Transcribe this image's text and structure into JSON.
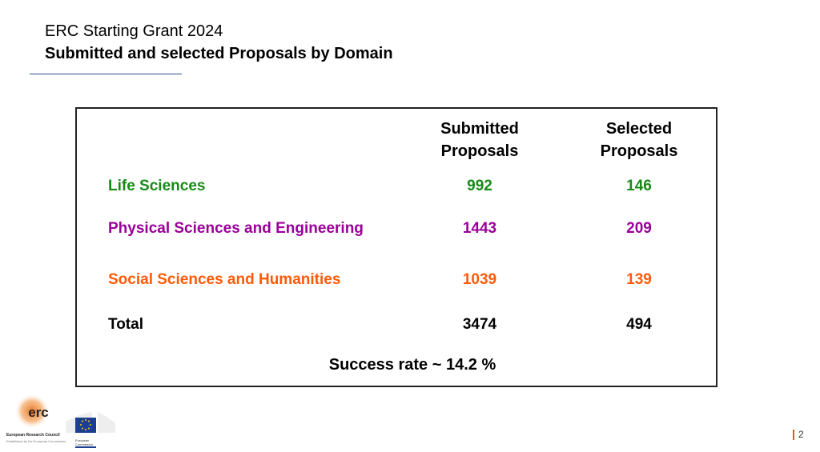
{
  "header": {
    "title": "ERC Starting Grant 2024",
    "subtitle": "Submitted and selected Proposals by Domain"
  },
  "table": {
    "columns": [
      "Submitted Proposals",
      "Selected Proposals"
    ],
    "column_lines": [
      [
        "Submitted",
        "Proposals"
      ],
      [
        "Selected",
        "Proposals"
      ]
    ],
    "rows": [
      {
        "domain": "Life Sciences",
        "submitted": "992",
        "selected": "146",
        "color": "#188a18"
      },
      {
        "domain": "Physical Sciences and Engineering",
        "submitted": "1443",
        "selected": "209",
        "color": "#990099"
      },
      {
        "domain": "Social Sciences and  Humanities",
        "submitted": "1039",
        "selected": "139",
        "color": "#ff5a0a"
      },
      {
        "domain": "Total",
        "submitted": "3474",
        "selected": "494",
        "color": "#000000"
      }
    ],
    "success_rate": "Success rate ~ 14.2 %"
  },
  "footer": {
    "erc_logo": "erc",
    "erc_name": "European Research Council",
    "erc_tagline": "Established by the European Commission",
    "ec_logo": "European Commission",
    "page_number": "2"
  }
}
